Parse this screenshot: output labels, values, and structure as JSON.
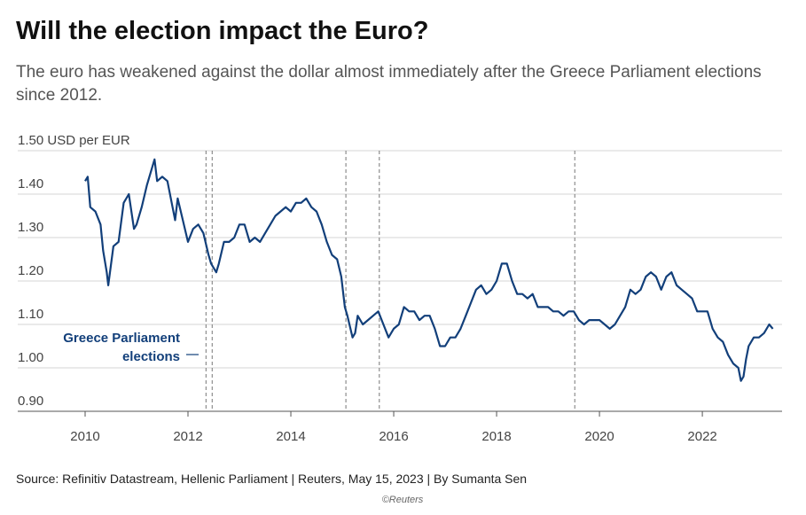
{
  "chart_data": {
    "type": "line",
    "title": "Will the election impact the Euro?",
    "subtitle": [
      "The euro has weakened against the dollar almost immediately after the Greece Parliament elections",
      "since 2012."
    ],
    "source": "Source: Refinitiv Datastream, Hellenic Parliament | Reuters, May 15, 2023 | By Sumanta Sen",
    "credit": "©Reuters",
    "annotation": [
      "Greece Parliament",
      "elections"
    ],
    "elections": [
      2012.35,
      2012.47,
      2015.07,
      2015.72,
      2019.52
    ],
    "color": "#123f7a",
    "grid": true,
    "xlim": [
      2008.69,
      2023.55
    ],
    "xticks": [
      2010,
      2012,
      2014,
      2016,
      2018,
      2020,
      2022
    ],
    "ylim": [
      0.9,
      1.5
    ],
    "yticks": [
      {
        "value": 0.9,
        "label": "0.90"
      },
      {
        "value": 1.0,
        "label": "1.00"
      },
      {
        "value": 1.1,
        "label": "1.10"
      },
      {
        "value": 1.2,
        "label": "1.20"
      },
      {
        "value": 1.3,
        "label": "1.30"
      },
      {
        "value": 1.4,
        "label": "1.40"
      },
      {
        "value": 1.5,
        "label": "1.50 USD per EUR"
      }
    ],
    "x": [
      2010.0,
      2010.05,
      2010.1,
      2010.2,
      2010.3,
      2010.35,
      2010.42,
      2010.45,
      2010.55,
      2010.65,
      2010.75,
      2010.85,
      2010.95,
      2011.0,
      2011.1,
      2011.2,
      2011.3,
      2011.35,
      2011.4,
      2011.5,
      2011.6,
      2011.7,
      2011.75,
      2011.8,
      2011.9,
      2012.0,
      2012.1,
      2012.2,
      2012.3,
      2012.4,
      2012.45,
      2012.55,
      2012.6,
      2012.7,
      2012.8,
      2012.9,
      2013.0,
      2013.1,
      2013.2,
      2013.3,
      2013.4,
      2013.5,
      2013.6,
      2013.7,
      2013.8,
      2013.9,
      2014.0,
      2014.1,
      2014.2,
      2014.3,
      2014.4,
      2014.5,
      2014.6,
      2014.7,
      2014.8,
      2014.9,
      2014.98,
      2015.05,
      2015.1,
      2015.2,
      2015.25,
      2015.3,
      2015.4,
      2015.5,
      2015.6,
      2015.7,
      2015.8,
      2015.9,
      2016.0,
      2016.1,
      2016.2,
      2016.3,
      2016.4,
      2016.5,
      2016.6,
      2016.7,
      2016.8,
      2016.9,
      2017.0,
      2017.1,
      2017.2,
      2017.3,
      2017.4,
      2017.5,
      2017.6,
      2017.7,
      2017.8,
      2017.9,
      2018.0,
      2018.1,
      2018.2,
      2018.3,
      2018.4,
      2018.5,
      2018.6,
      2018.7,
      2018.8,
      2018.9,
      2019.0,
      2019.1,
      2019.2,
      2019.3,
      2019.4,
      2019.5,
      2019.6,
      2019.7,
      2019.8,
      2019.9,
      2020.0,
      2020.1,
      2020.2,
      2020.3,
      2020.4,
      2020.5,
      2020.6,
      2020.7,
      2020.8,
      2020.9,
      2021.0,
      2021.1,
      2021.2,
      2021.3,
      2021.4,
      2021.5,
      2021.6,
      2021.7,
      2021.8,
      2021.9,
      2022.0,
      2022.1,
      2022.2,
      2022.3,
      2022.4,
      2022.5,
      2022.6,
      2022.7,
      2022.75,
      2022.8,
      2022.85,
      2022.9,
      2023.0,
      2023.1,
      2023.2,
      2023.3,
      2023.37
    ],
    "values": [
      1.43,
      1.44,
      1.37,
      1.36,
      1.33,
      1.27,
      1.22,
      1.19,
      1.28,
      1.29,
      1.38,
      1.4,
      1.32,
      1.33,
      1.37,
      1.42,
      1.46,
      1.48,
      1.43,
      1.44,
      1.43,
      1.37,
      1.34,
      1.39,
      1.34,
      1.29,
      1.32,
      1.33,
      1.31,
      1.26,
      1.24,
      1.22,
      1.24,
      1.29,
      1.29,
      1.3,
      1.33,
      1.33,
      1.29,
      1.3,
      1.29,
      1.31,
      1.33,
      1.35,
      1.36,
      1.37,
      1.36,
      1.38,
      1.38,
      1.39,
      1.37,
      1.36,
      1.33,
      1.29,
      1.26,
      1.25,
      1.21,
      1.14,
      1.12,
      1.07,
      1.08,
      1.12,
      1.1,
      1.11,
      1.12,
      1.13,
      1.1,
      1.07,
      1.09,
      1.1,
      1.14,
      1.13,
      1.13,
      1.11,
      1.12,
      1.12,
      1.09,
      1.05,
      1.05,
      1.07,
      1.07,
      1.09,
      1.12,
      1.15,
      1.18,
      1.19,
      1.17,
      1.18,
      1.2,
      1.24,
      1.24,
      1.2,
      1.17,
      1.17,
      1.16,
      1.17,
      1.14,
      1.14,
      1.14,
      1.13,
      1.13,
      1.12,
      1.13,
      1.13,
      1.11,
      1.1,
      1.11,
      1.11,
      1.11,
      1.1,
      1.09,
      1.1,
      1.12,
      1.14,
      1.18,
      1.17,
      1.18,
      1.21,
      1.22,
      1.21,
      1.18,
      1.21,
      1.22,
      1.19,
      1.18,
      1.17,
      1.16,
      1.13,
      1.13,
      1.13,
      1.09,
      1.07,
      1.06,
      1.03,
      1.01,
      1.0,
      0.97,
      0.98,
      1.02,
      1.05,
      1.07,
      1.07,
      1.08,
      1.1,
      1.09
    ]
  }
}
